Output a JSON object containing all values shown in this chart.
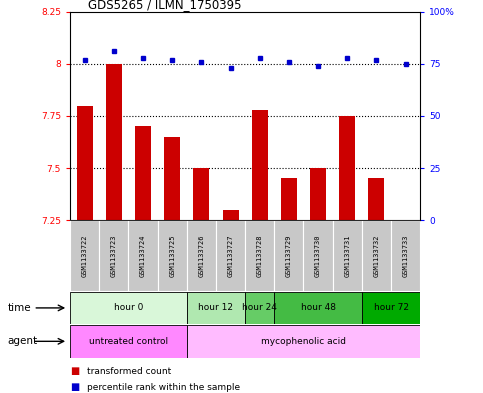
{
  "title": "GDS5265 / ILMN_1750395",
  "samples": [
    "GSM1133722",
    "GSM1133723",
    "GSM1133724",
    "GSM1133725",
    "GSM1133726",
    "GSM1133727",
    "GSM1133728",
    "GSM1133729",
    "GSM1133730",
    "GSM1133731",
    "GSM1133732",
    "GSM1133733"
  ],
  "transformed_count": [
    7.8,
    8.0,
    7.7,
    7.65,
    7.5,
    7.3,
    7.78,
    7.45,
    7.5,
    7.75,
    7.45,
    7.25
  ],
  "percentile_rank": [
    77,
    81,
    78,
    77,
    76,
    73,
    78,
    76,
    74,
    78,
    77,
    75
  ],
  "ylim_left": [
    7.25,
    8.25
  ],
  "ylim_right": [
    0,
    100
  ],
  "yticks_left": [
    7.25,
    7.5,
    7.75,
    8.0,
    8.25
  ],
  "yticks_right": [
    0,
    25,
    50,
    75,
    100
  ],
  "ytick_labels_left": [
    "7.25",
    "7.5",
    "7.75",
    "8",
    "8.25"
  ],
  "ytick_labels_right": [
    "0",
    "25",
    "50",
    "75",
    "100%"
  ],
  "hlines": [
    7.5,
    7.75,
    8.0
  ],
  "bar_color": "#cc0000",
  "dot_color": "#0000cc",
  "bar_bottom": 7.25,
  "time_groups": [
    {
      "label": "hour 0",
      "samples": [
        0,
        1,
        2,
        3
      ],
      "color": "#d9f7d9"
    },
    {
      "label": "hour 12",
      "samples": [
        4,
        5
      ],
      "color": "#b0e8b0"
    },
    {
      "label": "hour 24",
      "samples": [
        6
      ],
      "color": "#66cc66"
    },
    {
      "label": "hour 48",
      "samples": [
        7,
        8,
        9
      ],
      "color": "#44bb44"
    },
    {
      "label": "hour 72",
      "samples": [
        10,
        11
      ],
      "color": "#00aa00"
    }
  ],
  "agent_groups": [
    {
      "label": "untreated control",
      "samples": [
        0,
        1,
        2,
        3
      ],
      "color": "#ff88ff"
    },
    {
      "label": "mycophenolic acid",
      "samples": [
        4,
        5,
        6,
        7,
        8,
        9,
        10,
        11
      ],
      "color": "#ffbbff"
    }
  ],
  "legend_bar_color": "#cc0000",
  "legend_dot_color": "#0000cc",
  "legend_bar_label": "transformed count",
  "legend_dot_label": "percentile rank within the sample",
  "plot_bg": "#ffffff",
  "sample_box_color": "#c8c8c8",
  "n_samples": 12
}
